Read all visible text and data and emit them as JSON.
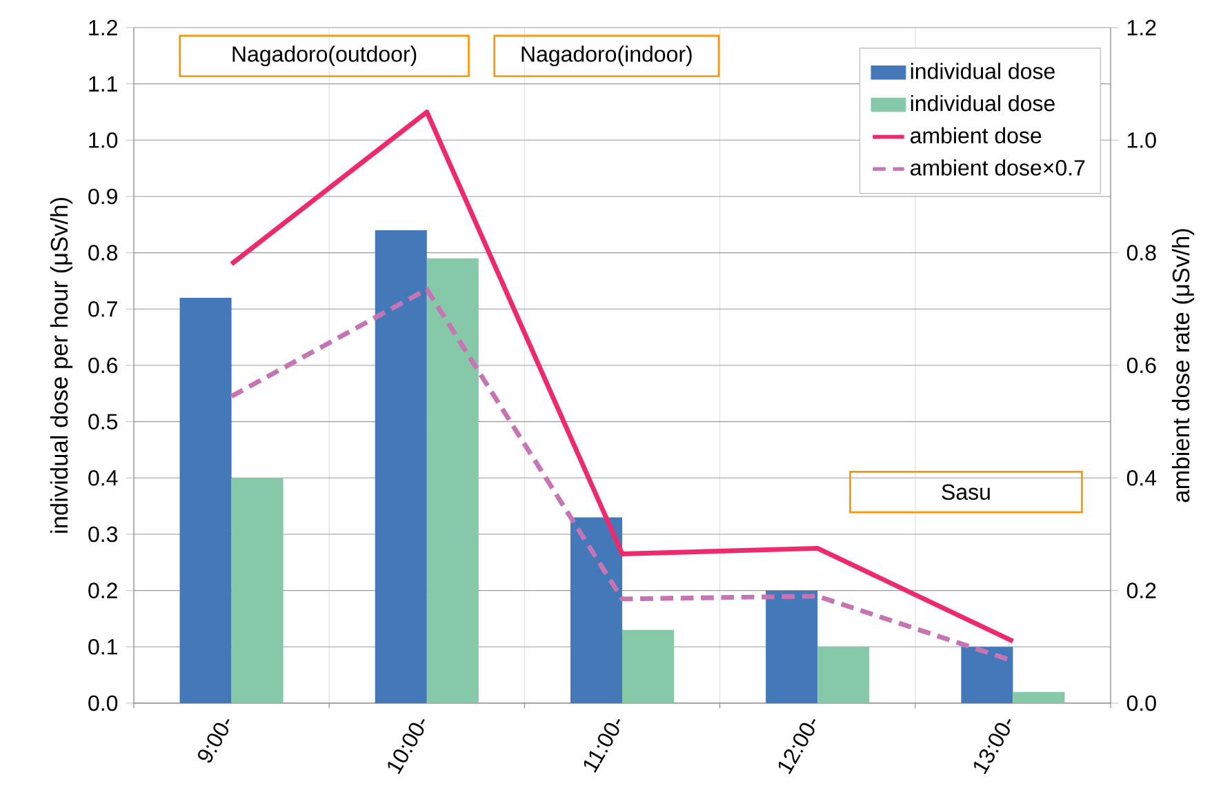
{
  "chart_data": {
    "type": "bar",
    "categories": [
      "9:00-",
      "10:00-",
      "11:00-",
      "12:00-",
      "13:00-"
    ],
    "ylabel": "individual dose per hour (μSv/h)",
    "y2label": "ambient dose rate (μSv/h)",
    "ylim": [
      0,
      1.2
    ],
    "yticks": [
      {
        "value": 0,
        "label": "0.0"
      },
      {
        "value": 0.1,
        "label": "0.1"
      },
      {
        "value": 0.2,
        "label": "0.2"
      },
      {
        "value": 0.3,
        "label": "0.3"
      },
      {
        "value": 0.4,
        "label": "0.4"
      },
      {
        "value": 0.5,
        "label": "0.5"
      },
      {
        "value": 0.6,
        "label": "0.6"
      },
      {
        "value": 0.7,
        "label": "0.7"
      },
      {
        "value": 0.8,
        "label": "0.8"
      },
      {
        "value": 0.9,
        "label": "0.9"
      },
      {
        "value": 1,
        "label": "1.0"
      },
      {
        "value": 1.1,
        "label": "1.1"
      },
      {
        "value": 1.2,
        "label": "1.2"
      }
    ],
    "y2lim": [
      0,
      1.2
    ],
    "y2ticks": [
      {
        "value": 0,
        "label": "0.0"
      },
      {
        "value": 0.2,
        "label": "0.2"
      },
      {
        "value": 0.4,
        "label": "0.4"
      },
      {
        "value": 0.6,
        "label": "0.6"
      },
      {
        "value": 0.8,
        "label": "0.8"
      },
      {
        "value": 1,
        "label": "1.0"
      },
      {
        "value": 1.2,
        "label": "1.2"
      }
    ],
    "grid": true,
    "legend": "top right",
    "annotations": [
      "Nagadoro(outdoor)",
      "Nagadoro(indoor)",
      "Sasu"
    ],
    "series": [
      {
        "name": "individual dose",
        "color": "#4479b9",
        "values": [
          0.72,
          0.84,
          0.33,
          0.2,
          0.1
        ]
      },
      {
        "name": "individual dose",
        "color": "#86c9a8",
        "values": [
          0.4,
          0.79,
          0.13,
          0.1,
          0.02
        ]
      },
      {
        "name": "ambient dose",
        "type": "line",
        "axis": "y2",
        "line_style": "solid",
        "color": "#ee2a6a",
        "values": [
          0.78,
          1.05,
          0.265,
          0.275,
          0.11
        ]
      },
      {
        "name": "ambient dose×0.7",
        "type": "line",
        "axis": "y2",
        "line_style": "dashed",
        "color": "#c774b5",
        "values": [
          0.545,
          0.735,
          0.185,
          0.19,
          0.075
        ]
      }
    ]
  }
}
